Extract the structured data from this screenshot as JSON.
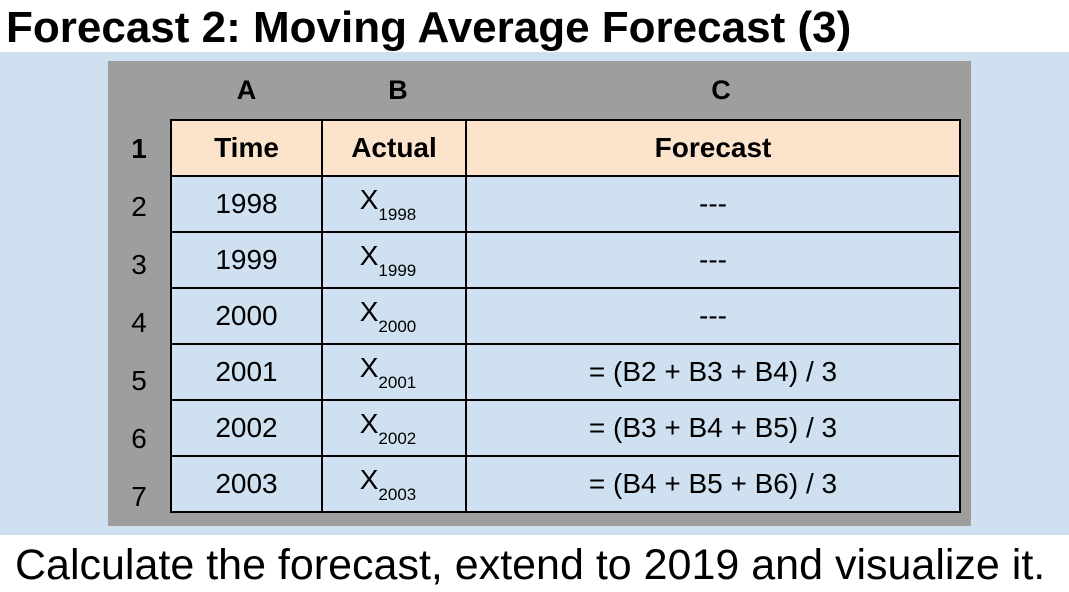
{
  "title": "Forecast 2: Moving Average Forecast (3)",
  "columns": [
    "A",
    "B",
    "C"
  ],
  "row_numbers": [
    "1",
    "2",
    "3",
    "4",
    "5",
    "6",
    "7"
  ],
  "headers": {
    "time": "Time",
    "actual": "Actual",
    "forecast": "Forecast"
  },
  "rows": [
    {
      "time": "1998",
      "actual_var": "X",
      "actual_sub": "1998",
      "forecast": "---"
    },
    {
      "time": "1999",
      "actual_var": "X",
      "actual_sub": "1999",
      "forecast": "---"
    },
    {
      "time": "2000",
      "actual_var": "X",
      "actual_sub": "2000",
      "forecast": "---"
    },
    {
      "time": "2001",
      "actual_var": "X",
      "actual_sub": "2001",
      "forecast": "= (B2 + B3 + B4) / 3"
    },
    {
      "time": "2002",
      "actual_var": "X",
      "actual_sub": "2002",
      "forecast": "= (B3 + B4 + B5) / 3"
    },
    {
      "time": "2003",
      "actual_var": "X",
      "actual_sub": "2003",
      "forecast": "= (B4 + B5 + B6) / 3"
    }
  ],
  "caption": "Calculate the forecast, extend to 2019 and visualize it.",
  "colors": {
    "panel_bg": "#cfe0f1",
    "header_gray": "#9e9e9e",
    "header_row_bg": "#fce4cc"
  }
}
